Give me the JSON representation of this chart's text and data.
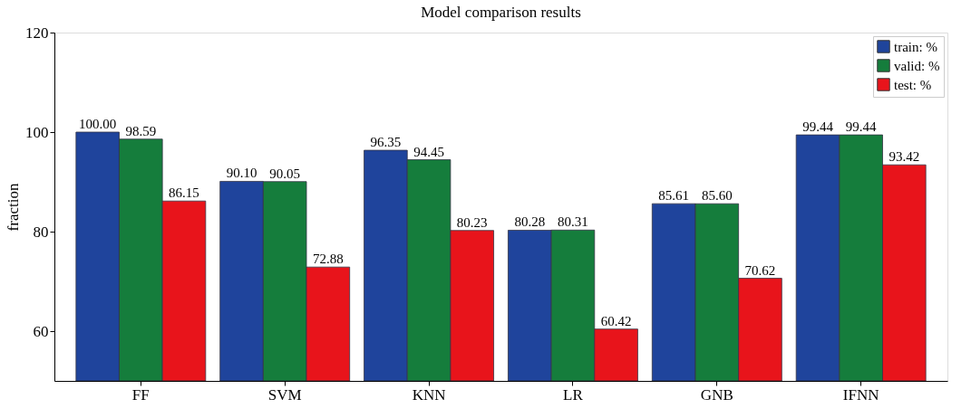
{
  "chart_data": {
    "type": "bar",
    "title": "Model comparison results",
    "ylabel": "fraction",
    "categories": [
      "FF",
      "SVM",
      "KNN",
      "LR",
      "GNB",
      "IFNN"
    ],
    "series": [
      {
        "name": "train: %",
        "color": "#1f449c",
        "values": [
          100.0,
          90.1,
          96.35,
          80.28,
          85.61,
          99.44
        ],
        "value_labels": [
          "100.00",
          "90.10",
          "96.35",
          "80.28",
          "85.61",
          "99.44"
        ]
      },
      {
        "name": "valid: %",
        "color": "#157d3c",
        "values": [
          98.59,
          90.05,
          94.45,
          80.31,
          85.6,
          99.44
        ],
        "value_labels": [
          "98.59",
          "90.05",
          "94.45",
          "80.31",
          "85.60",
          "99.44"
        ]
      },
      {
        "name": "test: %",
        "color": "#e8141b",
        "values": [
          86.15,
          72.88,
          80.23,
          60.42,
          70.62,
          93.42
        ],
        "value_labels": [
          "86.15",
          "72.88",
          "80.23",
          "60.42",
          "70.62",
          "93.42"
        ]
      }
    ],
    "ylim": [
      50,
      120
    ],
    "yticks": [
      60,
      80,
      100,
      120
    ],
    "grid": false,
    "legend": "top right"
  }
}
